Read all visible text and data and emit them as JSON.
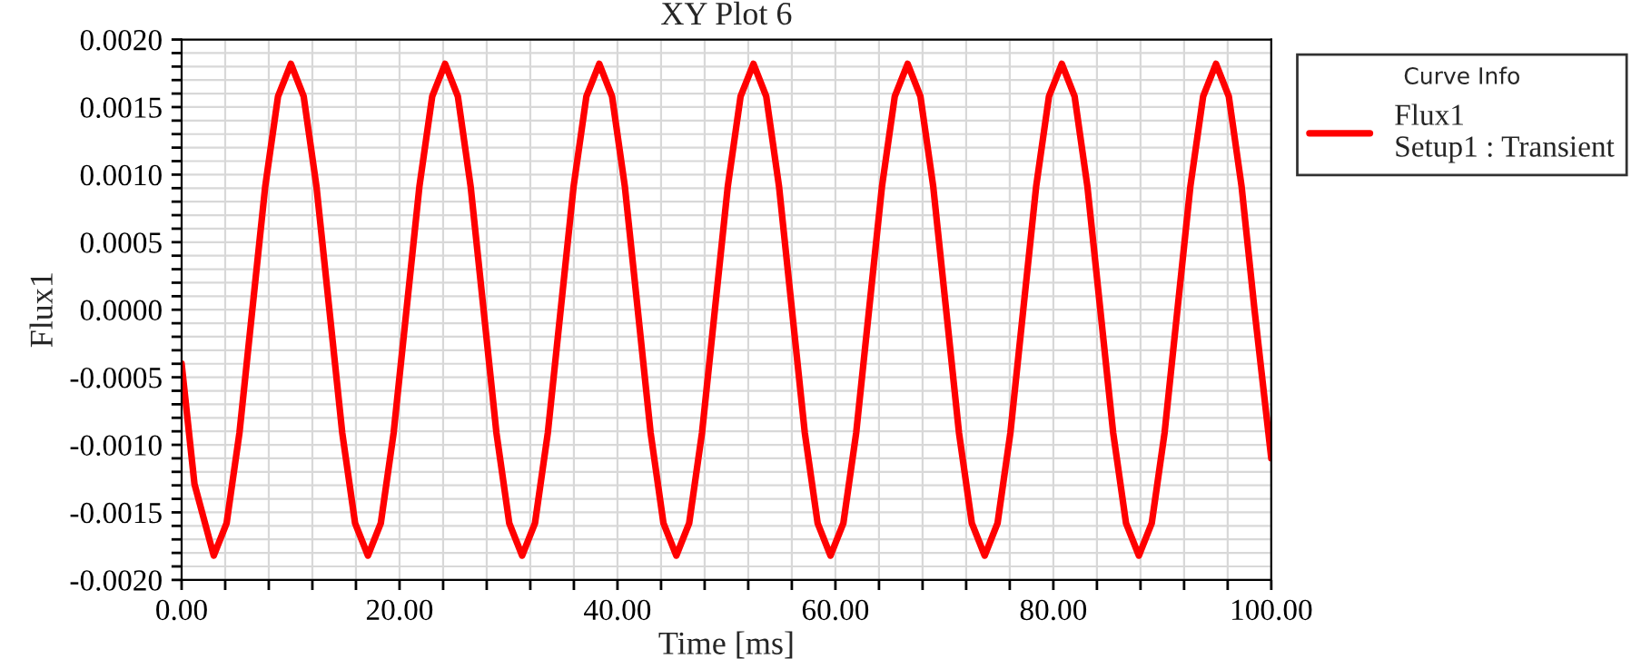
{
  "chart_data": {
    "type": "line",
    "title": "XY Plot 6",
    "xlabel": "Time [ms]",
    "ylabel": "Flux1",
    "legend_title": "Curve Info",
    "legend": "right",
    "grid": true,
    "line_style": "solid",
    "marker": "none",
    "xlim": [
      0,
      100
    ],
    "ylim": [
      -0.002,
      0.002
    ],
    "xticks": [
      {
        "value": 0,
        "label": "0.00"
      },
      {
        "value": 4,
        "label": null
      },
      {
        "value": 8,
        "label": null
      },
      {
        "value": 12,
        "label": null
      },
      {
        "value": 16,
        "label": null
      },
      {
        "value": 20,
        "label": "20.00"
      },
      {
        "value": 24,
        "label": null
      },
      {
        "value": 28,
        "label": null
      },
      {
        "value": 32,
        "label": null
      },
      {
        "value": 36,
        "label": null
      },
      {
        "value": 40,
        "label": "40.00"
      },
      {
        "value": 44,
        "label": null
      },
      {
        "value": 48,
        "label": null
      },
      {
        "value": 52,
        "label": null
      },
      {
        "value": 56,
        "label": null
      },
      {
        "value": 60,
        "label": "60.00"
      },
      {
        "value": 64,
        "label": null
      },
      {
        "value": 68,
        "label": null
      },
      {
        "value": 72,
        "label": null
      },
      {
        "value": 76,
        "label": null
      },
      {
        "value": 80,
        "label": "80.00"
      },
      {
        "value": 84,
        "label": null
      },
      {
        "value": 88,
        "label": null
      },
      {
        "value": 92,
        "label": null
      },
      {
        "value": 96,
        "label": null
      },
      {
        "value": 100,
        "label": "100.00"
      }
    ],
    "yticks": [
      {
        "value": -0.002,
        "label": "-0.0020"
      },
      {
        "value": -0.0019,
        "label": null
      },
      {
        "value": -0.0018,
        "label": null
      },
      {
        "value": -0.0017,
        "label": null
      },
      {
        "value": -0.0016,
        "label": null
      },
      {
        "value": -0.0015,
        "label": "-0.0015"
      },
      {
        "value": -0.0014,
        "label": null
      },
      {
        "value": -0.0013,
        "label": null
      },
      {
        "value": -0.0012,
        "label": null
      },
      {
        "value": -0.0011,
        "label": null
      },
      {
        "value": -0.001,
        "label": "-0.0010"
      },
      {
        "value": -0.0009,
        "label": null
      },
      {
        "value": -0.0008,
        "label": null
      },
      {
        "value": -0.0007,
        "label": null
      },
      {
        "value": -0.0006,
        "label": null
      },
      {
        "value": -0.0005,
        "label": "-0.0005"
      },
      {
        "value": -0.0004,
        "label": null
      },
      {
        "value": -0.0003,
        "label": null
      },
      {
        "value": -0.0002,
        "label": null
      },
      {
        "value": -0.0001,
        "label": null
      },
      {
        "value": 0,
        "label": "0.0000"
      },
      {
        "value": 0.0001,
        "label": null
      },
      {
        "value": 0.0002,
        "label": null
      },
      {
        "value": 0.0003,
        "label": null
      },
      {
        "value": 0.0004,
        "label": null
      },
      {
        "value": 0.0005,
        "label": "0.0005"
      },
      {
        "value": 0.0006,
        "label": null
      },
      {
        "value": 0.0007,
        "label": null
      },
      {
        "value": 0.0008,
        "label": null
      },
      {
        "value": 0.0009,
        "label": null
      },
      {
        "value": 0.001,
        "label": "0.0010"
      },
      {
        "value": 0.0011,
        "label": null
      },
      {
        "value": 0.0012,
        "label": null
      },
      {
        "value": 0.0013,
        "label": null
      },
      {
        "value": 0.0014,
        "label": null
      },
      {
        "value": 0.0015,
        "label": "0.0015"
      },
      {
        "value": 0.0016,
        "label": null
      },
      {
        "value": 0.0017,
        "label": null
      },
      {
        "value": 0.0018,
        "label": null
      },
      {
        "value": 0.0019,
        "label": null
      },
      {
        "value": 0.002,
        "label": "0.0020"
      }
    ],
    "series": [
      {
        "name": "Flux1\nSetup1 : Transient",
        "color": "#ff0000",
        "x": [
          0,
          1.18,
          2.95,
          4.13,
          5.31,
          6.49,
          7.67,
          8.85,
          10.03,
          11.2,
          12.38,
          13.56,
          14.74,
          15.92,
          17.1,
          18.28,
          19.46,
          20.64,
          21.82,
          23.0,
          24.18,
          25.35,
          26.53,
          27.71,
          28.89,
          30.07,
          31.25,
          32.43,
          33.61,
          34.79,
          35.97,
          37.15,
          38.33,
          39.5,
          40.68,
          41.86,
          43.04,
          44.22,
          45.4,
          46.58,
          47.76,
          48.94,
          50.12,
          51.3,
          52.48,
          53.65,
          54.83,
          56.01,
          57.19,
          58.37,
          59.55,
          60.73,
          61.91,
          63.09,
          64.27,
          65.45,
          66.63,
          67.8,
          68.98,
          70.16,
          71.34,
          72.52,
          73.7,
          74.88,
          76.06,
          77.24,
          78.42,
          79.6,
          80.78,
          81.95,
          83.13,
          84.31,
          85.49,
          86.67,
          87.85,
          89.03,
          90.21,
          91.39,
          92.57,
          93.75,
          94.93,
          96.1,
          97.28,
          98.46,
          100
        ],
        "values": [
          -0.0004,
          -0.00129,
          -0.00182,
          -0.00158,
          -0.00091,
          0,
          0.00091,
          0.00158,
          0.00182,
          0.00158,
          0.00091,
          0,
          -0.00091,
          -0.00158,
          -0.00182,
          -0.00158,
          -0.00091,
          0,
          0.00091,
          0.00158,
          0.00182,
          0.00158,
          0.00091,
          0,
          -0.00091,
          -0.00158,
          -0.00182,
          -0.00158,
          -0.00091,
          0,
          0.00091,
          0.00158,
          0.00182,
          0.00158,
          0.00091,
          0,
          -0.00091,
          -0.00158,
          -0.00182,
          -0.00158,
          -0.00091,
          0,
          0.00091,
          0.00158,
          0.00182,
          0.00158,
          0.00091,
          0,
          -0.00091,
          -0.00158,
          -0.00182,
          -0.00158,
          -0.00091,
          0,
          0.00091,
          0.00158,
          0.00182,
          0.00158,
          0.00091,
          0,
          -0.00091,
          -0.00158,
          -0.00182,
          -0.00158,
          -0.00091,
          0,
          0.00091,
          0.00158,
          0.00182,
          0.00158,
          0.00091,
          0,
          -0.00091,
          -0.00158,
          -0.00182,
          -0.00158,
          -0.00091,
          0,
          0.00091,
          0.00158,
          0.00182,
          0.00158,
          0.00091,
          0,
          -0.0011
        ]
      }
    ]
  }
}
